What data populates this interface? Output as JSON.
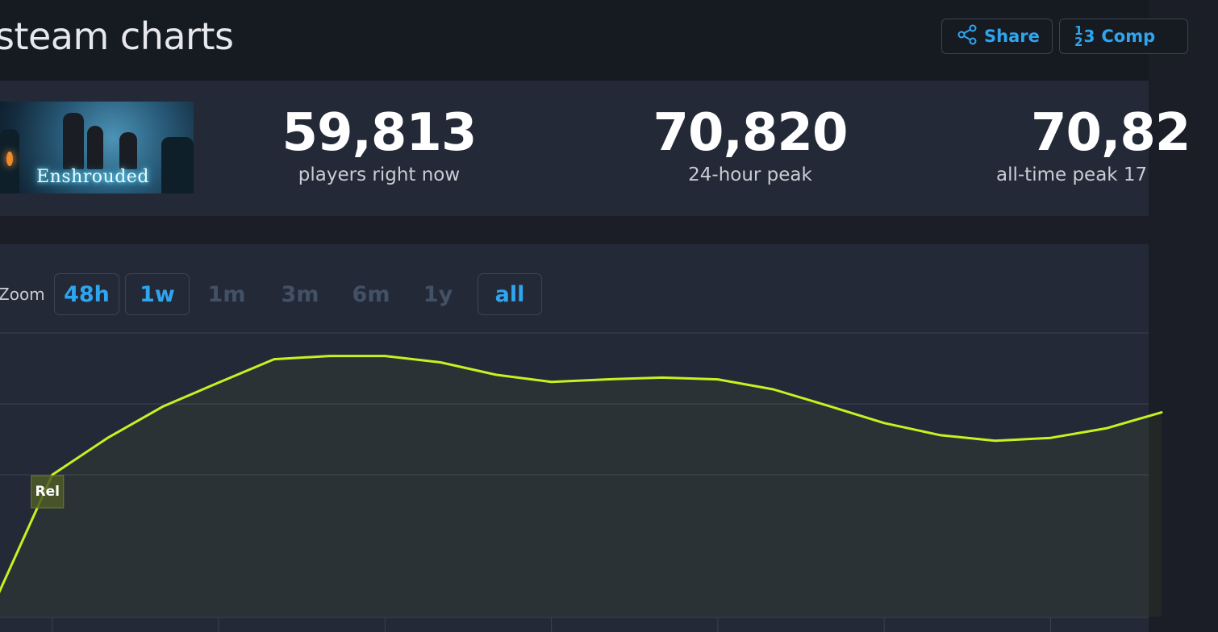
{
  "header": {
    "title": "steam charts",
    "share_label": "Share",
    "compare_label": "Comp",
    "compare_icon_top": "1",
    "compare_icon_bottom": "2",
    "compare_icon_right": "3"
  },
  "game": {
    "logo_text": "Enshrouded"
  },
  "stats": [
    {
      "value": "59,813",
      "label": "players right now"
    },
    {
      "value": "70,820",
      "label": "24-hour peak"
    },
    {
      "value": "70,82",
      "label": "all-time peak 17"
    }
  ],
  "zoom": {
    "label": "Zoom",
    "options": [
      {
        "label": "48h",
        "active": true
      },
      {
        "label": "1w",
        "active": true
      },
      {
        "label": "1m",
        "active": false
      },
      {
        "label": "3m",
        "active": false
      },
      {
        "label": "6m",
        "active": false
      },
      {
        "label": "1y",
        "active": false
      },
      {
        "label": "all",
        "active": true
      }
    ]
  },
  "chart_data": {
    "type": "area",
    "title": "",
    "xlabel": "",
    "ylabel": "",
    "x": [
      0,
      1,
      2,
      3,
      4,
      5,
      6,
      7,
      8,
      9,
      10,
      11,
      12,
      13,
      14,
      15,
      16,
      17,
      18,
      19,
      20,
      21
    ],
    "series": [
      {
        "values": [
          5.4,
          40,
          50.4,
          59.3,
          66,
          72.6,
          73.5,
          73.5,
          71.7,
          68.2,
          66.2,
          66.9,
          67.4,
          66.9,
          64.1,
          59.4,
          54.6,
          51.2,
          49.6,
          50.4,
          53.1,
          57.6
        ]
      }
    ],
    "ylim": [
      0,
      80
    ],
    "grid": true,
    "line_color": "#c6f221",
    "annotations": [
      {
        "text": "Rel",
        "x": 1
      }
    ]
  },
  "colors": {
    "accent": "#2fa5f0",
    "line": "#c6f221",
    "panel": "#232937",
    "header": "#161a21"
  }
}
